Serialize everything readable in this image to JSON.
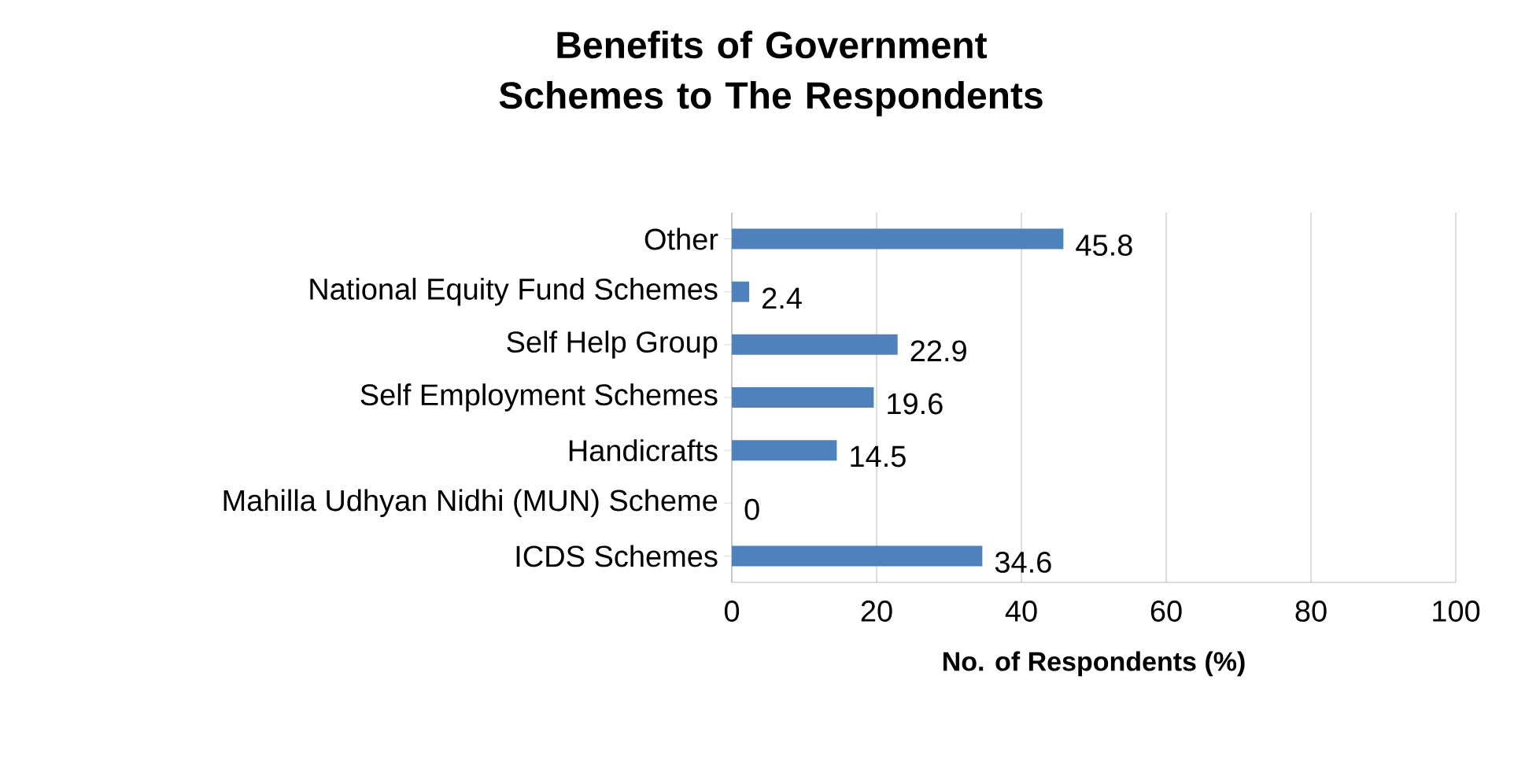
{
  "chart_data": {
    "type": "bar",
    "orientation": "horizontal",
    "title": "Benefits of Government Schemes to The Respondents",
    "xlabel": "No. of Respondents (%)",
    "categories": [
      "Other",
      "National Equity Fund Schemes",
      "Self Help Group",
      "Self Employment Schemes",
      "Handicrafts",
      "Mahilla Udhyan Nidhi (MUN) Scheme",
      "ICDS Schemes"
    ],
    "values": [
      45.8,
      2.4,
      22.9,
      19.6,
      14.5,
      0,
      34.6
    ],
    "color": "#4f81bd",
    "xlim": [
      0,
      100
    ],
    "xticks": [
      0,
      20,
      40,
      60,
      80,
      100
    ],
    "grid": "x",
    "data_labels": true
  }
}
